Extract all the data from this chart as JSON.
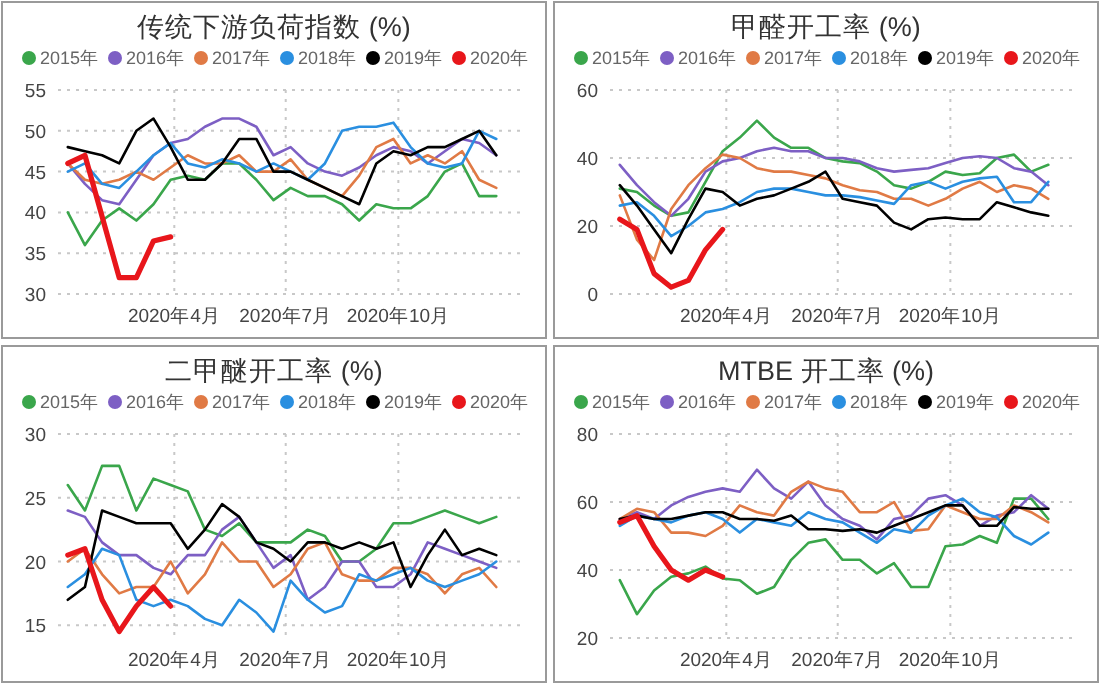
{
  "chart_data": [
    {
      "type": "line",
      "title": "传统下游负荷指数 (%)",
      "legend": "top",
      "grid": true,
      "xlim": [
        "2019-12-28",
        "2021-01-10"
      ],
      "ylim": [
        30,
        55
      ],
      "yticks": [
        30,
        35,
        40,
        45,
        50,
        55
      ],
      "xticks": [
        {
          "value": "2020-04-01",
          "label": "2020年4月"
        },
        {
          "value": "2020-07-01",
          "label": "2020年7月"
        },
        {
          "value": "2020-10-01",
          "label": "2020年10月"
        }
      ],
      "x": [
        "2020-01-05",
        "2020-01-19",
        "2020-02-02",
        "2020-02-16",
        "2020-03-01",
        "2020-03-15",
        "2020-03-29",
        "2020-04-12",
        "2020-04-26",
        "2020-05-10",
        "2020-05-24",
        "2020-06-07",
        "2020-06-21",
        "2020-07-05",
        "2020-07-19",
        "2020-08-02",
        "2020-08-16",
        "2020-08-30",
        "2020-09-13",
        "2020-09-27",
        "2020-10-11",
        "2020-10-25",
        "2020-11-08",
        "2020-11-22",
        "2020-12-06",
        "2020-12-20"
      ],
      "series": [
        {
          "name": "2015年",
          "color": "#3aa64b",
          "values": [
            40,
            36,
            39,
            40.5,
            39,
            41,
            44,
            44.5,
            44,
            46,
            46,
            44,
            41.5,
            43,
            42,
            42,
            41,
            39,
            41,
            40.5,
            40.5,
            42,
            45,
            46,
            42,
            42
          ]
        },
        {
          "name": "2016年",
          "color": "#7d5fc4",
          "values": [
            46,
            43.5,
            41.5,
            41,
            44,
            47,
            48.5,
            49,
            50.5,
            51.5,
            51.5,
            50.5,
            47,
            48,
            46,
            45,
            44.5,
            45.5,
            47,
            48,
            47.5,
            46,
            47.5,
            49,
            48.5,
            47
          ]
        },
        {
          "name": "2017年",
          "color": "#e07a45",
          "values": [
            46,
            44,
            43.5,
            44,
            45,
            44,
            45.5,
            47,
            46,
            46,
            47,
            45,
            45,
            46.5,
            44,
            43,
            42,
            44.5,
            48,
            49,
            46,
            47,
            46,
            47.5,
            44,
            43
          ]
        },
        {
          "name": "2018年",
          "color": "#2a8fe0",
          "values": [
            45,
            46,
            43.5,
            43,
            45,
            47,
            48.5,
            46,
            45.5,
            46.5,
            46,
            45,
            46,
            45,
            44,
            46,
            50,
            50.5,
            50.5,
            51,
            48,
            46,
            45.5,
            46,
            50,
            49
          ]
        },
        {
          "name": "2019年",
          "color": "#000000",
          "values": [
            48,
            47.5,
            47,
            46,
            50,
            51.5,
            48,
            44,
            44,
            46,
            49,
            49,
            45,
            45,
            44,
            43,
            42,
            41,
            46,
            47.5,
            47,
            48,
            48,
            49,
            50,
            47
          ]
        },
        {
          "name": "2020年",
          "color": "#e8161b",
          "x": [
            "2020-01-05",
            "2020-01-19",
            "2020-02-02",
            "2020-02-16",
            "2020-03-01",
            "2020-03-15",
            "2020-03-29"
          ],
          "values": [
            46,
            47,
            39.5,
            32,
            32,
            36.5,
            37
          ]
        }
      ]
    },
    {
      "type": "line",
      "title": "甲醛开工率 (%)",
      "legend": "top",
      "grid": true,
      "xlim": [
        "2019-12-28",
        "2021-01-10"
      ],
      "ylim": [
        0,
        60
      ],
      "yticks": [
        0,
        20,
        40,
        60
      ],
      "xticks": [
        {
          "value": "2020-04-01",
          "label": "2020年4月"
        },
        {
          "value": "2020-07-01",
          "label": "2020年7月"
        },
        {
          "value": "2020-10-01",
          "label": "2020年10月"
        }
      ],
      "x": [
        "2020-01-05",
        "2020-01-19",
        "2020-02-02",
        "2020-02-16",
        "2020-03-01",
        "2020-03-15",
        "2020-03-29",
        "2020-04-12",
        "2020-04-26",
        "2020-05-10",
        "2020-05-24",
        "2020-06-07",
        "2020-06-21",
        "2020-07-05",
        "2020-07-19",
        "2020-08-02",
        "2020-08-16",
        "2020-08-30",
        "2020-09-13",
        "2020-09-27",
        "2020-10-11",
        "2020-10-25",
        "2020-11-08",
        "2020-11-22",
        "2020-12-06",
        "2020-12-20"
      ],
      "series": [
        {
          "name": "2015年",
          "color": "#3aa64b",
          "values": [
            31,
            30,
            26,
            23,
            24,
            33,
            42,
            46,
            51,
            46,
            43,
            43,
            40,
            39,
            38.5,
            36,
            32,
            31,
            33,
            36,
            35,
            35.5,
            40,
            41,
            36,
            38
          ]
        },
        {
          "name": "2016年",
          "color": "#7d5fc4",
          "values": [
            38,
            32,
            27,
            23,
            28,
            36,
            39,
            40,
            42,
            43,
            42,
            42,
            40,
            40,
            39,
            37,
            36,
            36.5,
            37,
            38.5,
            40,
            40.5,
            40,
            37,
            36,
            32
          ]
        },
        {
          "name": "2017年",
          "color": "#e07a45",
          "values": [
            29,
            16,
            10,
            25,
            32,
            37,
            41,
            40,
            37,
            36,
            36,
            35,
            34,
            32,
            30.5,
            30,
            28,
            28,
            26,
            28,
            31,
            33,
            30,
            32,
            31,
            28
          ]
        },
        {
          "name": "2018年",
          "color": "#2a8fe0",
          "values": [
            26,
            27,
            23,
            17,
            20,
            24,
            25,
            27,
            30,
            31,
            31,
            30,
            29,
            29,
            28.5,
            27.5,
            26.5,
            32,
            33,
            31,
            33,
            34,
            34.5,
            27,
            27,
            33
          ]
        },
        {
          "name": "2019年",
          "color": "#000000",
          "values": [
            32,
            26,
            19,
            12,
            22,
            31,
            30,
            26,
            28,
            29,
            31,
            33,
            36,
            28,
            27,
            26,
            21,
            19,
            22,
            22.5,
            22,
            22,
            27,
            25.5,
            24,
            23
          ]
        },
        {
          "name": "2020年",
          "color": "#e8161b",
          "x": [
            "2020-01-05",
            "2020-01-19",
            "2020-02-02",
            "2020-02-16",
            "2020-03-01",
            "2020-03-15",
            "2020-03-29"
          ],
          "values": [
            22,
            19,
            6,
            2,
            4,
            13,
            19
          ]
        }
      ]
    },
    {
      "type": "line",
      "title": "二甲醚开工率 (%)",
      "legend": "top",
      "grid": true,
      "xlim": [
        "2019-12-28",
        "2021-01-10"
      ],
      "ylim": [
        14,
        30
      ],
      "yticks": [
        15,
        20,
        25,
        30
      ],
      "xticks": [
        {
          "value": "2020-04-01",
          "label": "2020年4月"
        },
        {
          "value": "2020-07-01",
          "label": "2020年7月"
        },
        {
          "value": "2020-10-01",
          "label": "2020年10月"
        }
      ],
      "x": [
        "2020-01-05",
        "2020-01-19",
        "2020-02-02",
        "2020-02-16",
        "2020-03-01",
        "2020-03-15",
        "2020-03-29",
        "2020-04-12",
        "2020-04-26",
        "2020-05-10",
        "2020-05-24",
        "2020-06-07",
        "2020-06-21",
        "2020-07-05",
        "2020-07-19",
        "2020-08-02",
        "2020-08-16",
        "2020-08-30",
        "2020-09-13",
        "2020-09-27",
        "2020-10-11",
        "2020-10-25",
        "2020-11-08",
        "2020-11-22",
        "2020-12-06",
        "2020-12-20"
      ],
      "series": [
        {
          "name": "2015年",
          "color": "#3aa64b",
          "values": [
            26,
            24,
            27.5,
            27.5,
            24,
            26.5,
            26,
            25.5,
            22.5,
            22,
            23,
            21.5,
            21.5,
            21.5,
            22.5,
            22,
            20,
            20,
            21,
            23,
            23,
            23.5,
            24,
            23.5,
            23,
            23.5
          ]
        },
        {
          "name": "2016年",
          "color": "#7d5fc4",
          "values": [
            24,
            23.5,
            21.5,
            20.5,
            20.5,
            19.5,
            19,
            20.5,
            20.5,
            22.5,
            23.5,
            21.5,
            19.5,
            20.5,
            17,
            18,
            20,
            20,
            18,
            18,
            19,
            21.5,
            21,
            20.5,
            20,
            19.5
          ]
        },
        {
          "name": "2017年",
          "color": "#e07a45",
          "values": [
            20,
            21,
            19,
            17.5,
            18,
            18,
            20,
            17.5,
            19,
            21.5,
            20,
            20,
            18,
            19,
            21,
            21.5,
            19,
            18.5,
            18.5,
            19.5,
            19.5,
            19,
            17.5,
            19,
            19.5,
            18
          ]
        },
        {
          "name": "2018年",
          "color": "#2a8fe0",
          "values": [
            18,
            19,
            21,
            20.5,
            17,
            16.5,
            17,
            16.5,
            15.5,
            15,
            17,
            16,
            14.5,
            18.5,
            17,
            16,
            16.5,
            19,
            18.5,
            19,
            19.5,
            18.5,
            18,
            18.5,
            19,
            20
          ]
        },
        {
          "name": "2019年",
          "color": "#000000",
          "values": [
            17,
            18,
            24,
            23.5,
            23,
            23,
            23,
            21,
            22.5,
            24.5,
            23.5,
            21.5,
            21,
            20,
            21.5,
            21.5,
            21,
            21.5,
            21,
            21.5,
            18,
            20.5,
            22.5,
            20.5,
            21,
            20.5
          ]
        },
        {
          "name": "2020年",
          "color": "#e8161b",
          "x": [
            "2020-01-05",
            "2020-01-19",
            "2020-02-02",
            "2020-02-16",
            "2020-03-01",
            "2020-03-15",
            "2020-03-29"
          ],
          "values": [
            20.5,
            21,
            17,
            14.5,
            16.5,
            18,
            16.5
          ]
        }
      ]
    },
    {
      "type": "line",
      "title": "MTBE 开工率 (%)",
      "legend": "top",
      "grid": true,
      "xlim": [
        "2019-12-28",
        "2021-01-10"
      ],
      "ylim": [
        20,
        80
      ],
      "yticks": [
        20,
        40,
        60,
        80
      ],
      "xticks": [
        {
          "value": "2020-04-01",
          "label": "2020年4月"
        },
        {
          "value": "2020-07-01",
          "label": "2020年7月"
        },
        {
          "value": "2020-10-01",
          "label": "2020年10月"
        }
      ],
      "x": [
        "2020-01-05",
        "2020-01-19",
        "2020-02-02",
        "2020-02-16",
        "2020-03-01",
        "2020-03-15",
        "2020-03-29",
        "2020-04-12",
        "2020-04-26",
        "2020-05-10",
        "2020-05-24",
        "2020-06-07",
        "2020-06-21",
        "2020-07-05",
        "2020-07-19",
        "2020-08-02",
        "2020-08-16",
        "2020-08-30",
        "2020-09-13",
        "2020-09-27",
        "2020-10-11",
        "2020-10-25",
        "2020-11-08",
        "2020-11-22",
        "2020-12-06",
        "2020-12-20"
      ],
      "series": [
        {
          "name": "2015年",
          "color": "#3aa64b",
          "values": [
            37,
            27,
            34,
            38,
            39,
            41,
            37.5,
            37,
            33,
            35,
            43,
            48,
            49,
            43,
            43,
            39,
            42,
            35,
            35,
            47,
            47.5,
            50,
            48,
            61,
            61,
            55
          ]
        },
        {
          "name": "2016年",
          "color": "#7d5fc4",
          "values": [
            55,
            57,
            55,
            59,
            61.5,
            63,
            64,
            63,
            69.5,
            64,
            61,
            66,
            59,
            55,
            53,
            49,
            55,
            56,
            61,
            62,
            59,
            53,
            56,
            57,
            62,
            58
          ]
        },
        {
          "name": "2017年",
          "color": "#e07a45",
          "values": [
            55,
            58,
            57,
            51,
            51,
            50,
            53,
            59,
            57,
            56,
            63,
            66,
            64,
            63,
            57,
            57,
            60,
            51.5,
            52,
            59,
            57,
            55,
            55,
            59,
            57,
            54
          ]
        },
        {
          "name": "2018年",
          "color": "#2a8fe0",
          "values": [
            53,
            56,
            55,
            54,
            56,
            57,
            55,
            51,
            55,
            54,
            53,
            57,
            55,
            54,
            51,
            48,
            52,
            51,
            56,
            59,
            61,
            57,
            55.5,
            50,
            47.5,
            51
          ]
        },
        {
          "name": "2019年",
          "color": "#000000",
          "values": [
            55,
            56,
            55,
            55,
            56,
            57,
            57,
            55,
            55,
            54.5,
            56,
            52,
            52,
            51.5,
            52,
            51,
            53,
            55,
            57,
            59,
            59,
            53,
            53,
            58.5,
            58,
            58
          ]
        },
        {
          "name": "2020年",
          "color": "#e8161b",
          "x": [
            "2020-01-05",
            "2020-01-19",
            "2020-02-02",
            "2020-02-16",
            "2020-03-01",
            "2020-03-15",
            "2020-03-29"
          ],
          "values": [
            54,
            56,
            47,
            40,
            37,
            40,
            38
          ]
        }
      ]
    }
  ]
}
